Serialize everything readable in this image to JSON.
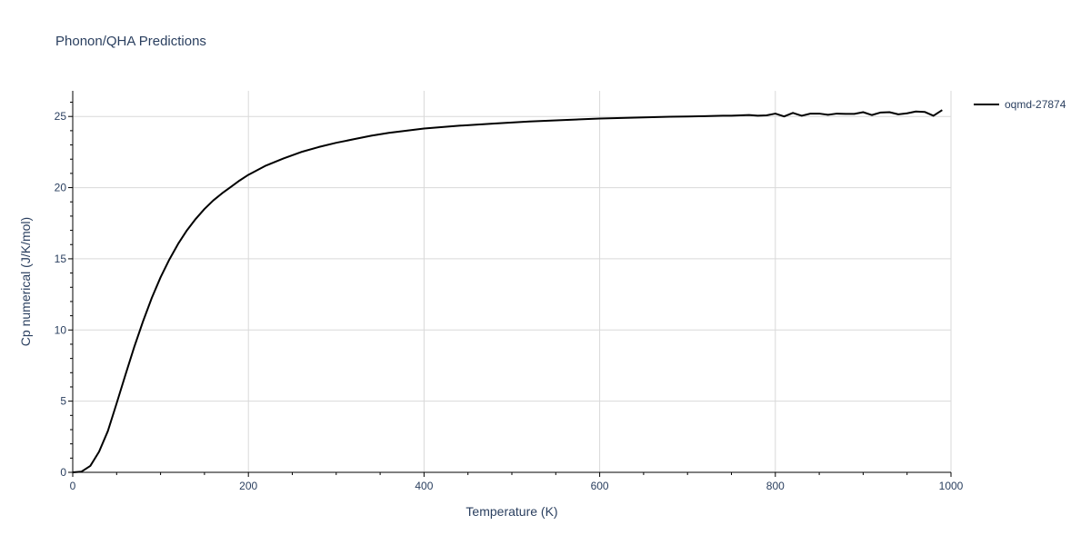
{
  "chart_data": {
    "type": "line",
    "title": "Phonon/QHA Predictions",
    "xlabel": "Temperature (K)",
    "ylabel": "Cp numerical (J/K/mol)",
    "xlim": [
      0,
      1000
    ],
    "ylim": [
      0,
      26.8
    ],
    "xticks": [
      0,
      200,
      400,
      600,
      800,
      1000
    ],
    "yticks": [
      0,
      5,
      10,
      15,
      20,
      25
    ],
    "grid": true,
    "legend_position": "top-right",
    "series": [
      {
        "name": "oqmd-27874",
        "color": "#000000",
        "x": [
          0,
          10,
          20,
          30,
          40,
          50,
          60,
          70,
          80,
          90,
          100,
          110,
          120,
          130,
          140,
          150,
          160,
          170,
          180,
          190,
          200,
          220,
          240,
          260,
          280,
          300,
          320,
          340,
          360,
          380,
          400,
          440,
          480,
          520,
          560,
          600,
          630,
          640,
          660,
          680,
          700,
          720,
          740,
          750,
          760,
          770,
          780,
          790,
          800,
          810,
          820,
          830,
          840,
          850,
          860,
          870,
          880,
          890,
          900,
          910,
          920,
          930,
          940,
          950,
          960,
          970,
          980,
          990
        ],
        "y": [
          0,
          0.05,
          0.45,
          1.45,
          2.9,
          4.85,
          6.85,
          8.8,
          10.6,
          12.25,
          13.7,
          14.95,
          16.05,
          17.0,
          17.8,
          18.5,
          19.1,
          19.6,
          20.05,
          20.5,
          20.9,
          21.55,
          22.05,
          22.5,
          22.85,
          23.15,
          23.4,
          23.65,
          23.85,
          24.0,
          24.15,
          24.35,
          24.5,
          24.65,
          24.75,
          24.85,
          24.9,
          24.92,
          24.95,
          24.98,
          25.0,
          25.02,
          25.05,
          25.05,
          25.08,
          25.1,
          25.05,
          25.08,
          25.2,
          25.0,
          25.25,
          25.05,
          25.2,
          25.2,
          25.12,
          25.2,
          25.18,
          25.18,
          25.3,
          25.1,
          25.28,
          25.3,
          25.15,
          25.22,
          25.35,
          25.32,
          25.05,
          25.45
        ]
      }
    ]
  }
}
